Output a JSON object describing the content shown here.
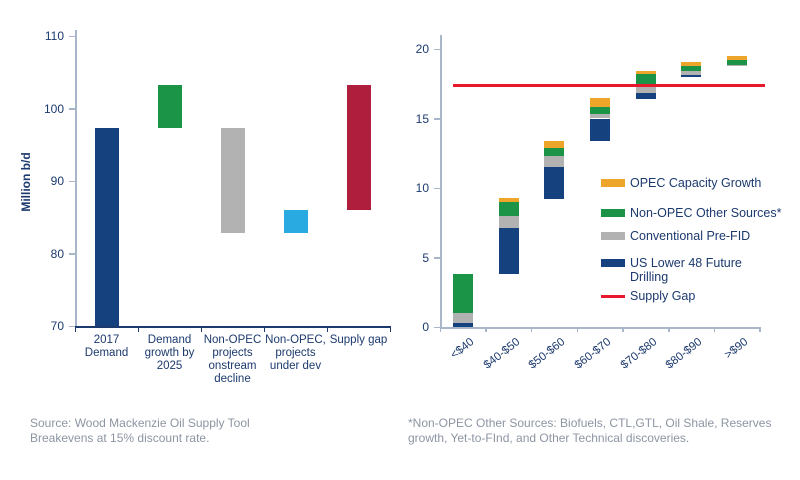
{
  "colors": {
    "navy": "#15417e",
    "green": "#1b9447",
    "gray": "#b2b2b2",
    "light_blue": "#29abe2",
    "crimson": "#b01e3e",
    "orange": "#eea62a",
    "red_line": "#e8192c",
    "axis_light": "#a9b6c9",
    "text_navy": "#1c3a6e",
    "text_gray": "#8d95a3"
  },
  "chart_data": [
    {
      "type": "bar",
      "subtype": "waterfall",
      "title": "",
      "ylabel": "Million b/d",
      "ylim": [
        70,
        110
      ],
      "yticks": [
        110,
        100,
        90,
        80,
        70
      ],
      "grid": false,
      "categories": [
        "2017 Demand",
        "Demand growth by 2025",
        "Non-OPEC projects onstream decline",
        "Non-OPEC, projects under dev",
        "Supply gap"
      ],
      "bars": [
        {
          "category": "2017 Demand",
          "from": 70,
          "to": 97.3,
          "color_key": "navy"
        },
        {
          "category": "Demand growth by 2025",
          "from": 97.3,
          "to": 103.3,
          "color_key": "green"
        },
        {
          "category": "Non-OPEC projects onstream decline",
          "from": 82.8,
          "to": 97.3,
          "color_key": "gray"
        },
        {
          "category": "Non-OPEC, projects under dev",
          "from": 82.8,
          "to": 86.0,
          "color_key": "light_blue"
        },
        {
          "category": "Supply gap",
          "from": 86.0,
          "to": 103.3,
          "color_key": "crimson"
        }
      ]
    },
    {
      "type": "bar",
      "subtype": "stacked-floating-waterfall",
      "title": "",
      "ylabel": "",
      "ylim": [
        0,
        20
      ],
      "yticks": [
        20,
        15,
        10,
        5,
        0
      ],
      "grid": false,
      "categories": [
        "<$40",
        "$40-$50",
        "$50-$60",
        "$60-$70",
        "$70-$80",
        "$80-$90",
        ">$90"
      ],
      "series_order": [
        "US Lower 48 Future Drilling",
        "Conventional Pre-FID",
        "Non-OPEC Other Sources*",
        "OPEC Capacity Growth"
      ],
      "series_color_keys": [
        "navy",
        "gray",
        "green",
        "orange"
      ],
      "bars": [
        {
          "category": "<$40",
          "base": 0,
          "segments": [
            0.3,
            0.7,
            2.8,
            0
          ]
        },
        {
          "category": "$40-$50",
          "base": 3.8,
          "segments": [
            3.3,
            0.9,
            1.0,
            0.3
          ]
        },
        {
          "category": "$50-$60",
          "base": 9.2,
          "segments": [
            2.3,
            0.8,
            0.6,
            0.45
          ]
        },
        {
          "category": "$60-$70",
          "base": 13.4,
          "segments": [
            1.6,
            0.3,
            0.5,
            0.7
          ]
        },
        {
          "category": "$70-$80",
          "base": 16.4,
          "segments": [
            0.4,
            0.5,
            0.9,
            0.2
          ]
        },
        {
          "category": "$80-$90",
          "base": 18.0,
          "segments": [
            0.15,
            0.25,
            0.35,
            0.35
          ]
        },
        {
          "category": ">$90",
          "base": 18.75,
          "segments": [
            0,
            0.1,
            0.35,
            0.3
          ]
        }
      ],
      "supply_gap_line_value": 17.4,
      "legend_position": "inside-right",
      "legend": [
        {
          "label": "OPEC Capacity Growth",
          "color_key": "orange",
          "swatch": "box"
        },
        {
          "label": "Non-OPEC Other Sources*",
          "color_key": "green",
          "swatch": "box"
        },
        {
          "label": "Conventional Pre-FID",
          "color_key": "gray",
          "swatch": "box"
        },
        {
          "label": "US Lower 48 Future Drilling",
          "color_key": "navy",
          "swatch": "box"
        },
        {
          "label": "Supply Gap",
          "color_key": "red_line",
          "swatch": "line"
        }
      ]
    }
  ],
  "footnotes": {
    "source_line1": "Source: Wood Mackenzie Oil Supply Tool",
    "source_line2": "Breakevens at 15% discount rate.",
    "note_right": "*Non-OPEC Other Sources: Biofuels, CTL,GTL, Oil Shale, Reserves growth, Yet-to-FInd, and Other Technical discoveries."
  }
}
